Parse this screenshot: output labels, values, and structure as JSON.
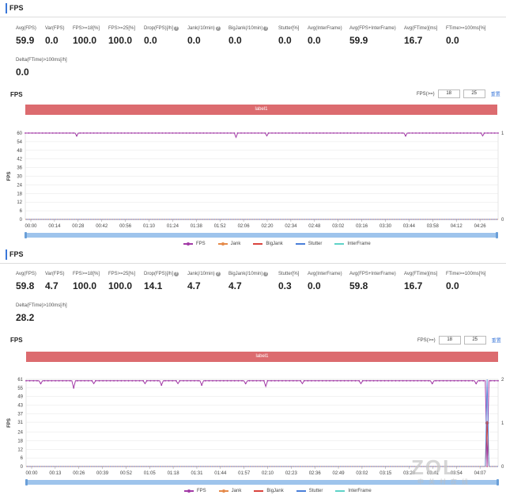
{
  "colors": {
    "fps": "#a23aa6",
    "jank": "#e58a4a",
    "bigjank": "#d9443e",
    "stutter": "#4a7fd9",
    "interframe": "#5fd3c8",
    "label_bar": "#dc6b6f",
    "accent": "#3a77d9"
  },
  "panels": [
    {
      "section_title": "FPS",
      "metrics": [
        {
          "label": "Avg(FPS)",
          "value": "59.9"
        },
        {
          "label": "Var(FPS)",
          "value": "0.0"
        },
        {
          "label": "FPS>=18[%]",
          "value": "100.0"
        },
        {
          "label": "FPS>=25[%]",
          "value": "100.0"
        },
        {
          "label": "Drop(FPS)[/h]",
          "value": "0.0",
          "help": true
        },
        {
          "label": "Jank(/10min)",
          "value": "0.0",
          "help": true
        },
        {
          "label": "BigJank(/10min)",
          "value": "0.0",
          "help": true
        },
        {
          "label": "Stutter[%]",
          "value": "0.0"
        },
        {
          "label": "Avg(InterFrame)",
          "value": "0.0"
        },
        {
          "label": "Avg(FPS+InterFrame)",
          "value": "59.9"
        },
        {
          "label": "Avg(FTime)[ms]",
          "value": "16.7"
        },
        {
          "label": "FTime>=100ms[%]",
          "value": "0.0"
        },
        {
          "label": "Delta(FTime)>100ms[/h]",
          "value": "0.0"
        }
      ],
      "chart_title": "FPS",
      "fps_label": "FPS(>=)",
      "fps_inputs": [
        "18",
        "25"
      ],
      "reset_label": "重置",
      "label_bar": "label1"
    },
    {
      "section_title": "FPS",
      "metrics": [
        {
          "label": "Avg(FPS)",
          "value": "59.8"
        },
        {
          "label": "Var(FPS)",
          "value": "4.7"
        },
        {
          "label": "FPS>=18[%]",
          "value": "100.0"
        },
        {
          "label": "FPS>=25[%]",
          "value": "100.0"
        },
        {
          "label": "Drop(FPS)[/h]",
          "value": "14.1",
          "help": true
        },
        {
          "label": "Jank(/10min)",
          "value": "4.7",
          "help": true
        },
        {
          "label": "BigJank(/10min)",
          "value": "4.7",
          "help": true
        },
        {
          "label": "Stutter[%]",
          "value": "0.3"
        },
        {
          "label": "Avg(InterFrame)",
          "value": "0.0"
        },
        {
          "label": "Avg(FPS+InterFrame)",
          "value": "59.8"
        },
        {
          "label": "Avg(FTime)[ms]",
          "value": "16.7"
        },
        {
          "label": "FTime>=100ms[%]",
          "value": "0.0"
        },
        {
          "label": "Delta(FTime)>100ms[/h]",
          "value": "28.2"
        }
      ],
      "chart_title": "FPS",
      "fps_label": "FPS(>=)",
      "fps_inputs": [
        "18",
        "25"
      ],
      "reset_label": "重置",
      "label_bar": "label1"
    }
  ],
  "chart_data": [
    {
      "type": "line",
      "ylabel": "FPS",
      "ylim": [
        0,
        60
      ],
      "yticks": [
        0,
        6,
        12,
        18,
        24,
        30,
        36,
        42,
        48,
        54,
        60
      ],
      "y2lim": [
        0,
        1
      ],
      "y2ticks": [
        0,
        1
      ],
      "x_ticks": [
        "00:00",
        "00:14",
        "00:28",
        "00:42",
        "00:56",
        "01:10",
        "01:24",
        "01:38",
        "01:52",
        "02:06",
        "02:20",
        "02:34",
        "02:48",
        "03:02",
        "03:16",
        "03:30",
        "03:44",
        "03:58",
        "04:12",
        "04:26"
      ],
      "x_range_seconds": [
        0,
        276
      ],
      "grid": true,
      "legend_position": "bottom",
      "series": [
        {
          "name": "FPS",
          "axis": "left",
          "baseline": 60,
          "dips": [
            [
              30,
              58
            ],
            [
              123,
              57
            ],
            [
              141,
              58
            ],
            [
              222,
              58
            ],
            [
              267,
              58
            ]
          ]
        },
        {
          "name": "Jank",
          "axis": "right",
          "values": []
        },
        {
          "name": "BigJank",
          "axis": "right",
          "values": []
        },
        {
          "name": "Stutter",
          "axis": "right",
          "values": []
        },
        {
          "name": "InterFrame",
          "axis": "left",
          "values": []
        }
      ]
    },
    {
      "type": "line",
      "ylabel": "FPS",
      "ylim": [
        0,
        61
      ],
      "yticks": [
        0,
        6,
        12,
        18,
        24,
        31,
        37,
        43,
        49,
        55,
        61
      ],
      "y2lim": [
        0,
        2
      ],
      "y2ticks": [
        0,
        1,
        2
      ],
      "x_ticks": [
        "00:00",
        "00:13",
        "00:26",
        "00:39",
        "00:52",
        "01:05",
        "01:18",
        "01:31",
        "01:44",
        "01:57",
        "02:10",
        "02:23",
        "02:36",
        "02:49",
        "03:02",
        "03:15",
        "03:28",
        "03:41",
        "03:54",
        "04:07"
      ],
      "x_range_seconds": [
        0,
        258
      ],
      "grid": true,
      "legend_position": "bottom",
      "series": [
        {
          "name": "FPS",
          "axis": "left",
          "baseline": 60,
          "dips": [
            [
              8,
              58
            ],
            [
              26,
              55
            ],
            [
              37,
              58
            ],
            [
              65,
              58
            ],
            [
              74,
              57
            ],
            [
              83,
              58
            ],
            [
              96,
              57
            ],
            [
              120,
              58
            ],
            [
              131,
              56
            ],
            [
              151,
              58
            ],
            [
              183,
              58
            ],
            [
              222,
              58
            ],
            [
              246,
              58
            ],
            [
              252,
              0
            ],
            [
              253,
              60
            ]
          ]
        },
        {
          "name": "Jank",
          "axis": "right",
          "values": [
            [
              252,
              1
            ]
          ]
        },
        {
          "name": "BigJank",
          "axis": "right",
          "values": [
            [
              252,
              1
            ]
          ]
        },
        {
          "name": "Stutter",
          "axis": "right",
          "values": [
            [
              251,
              0
            ],
            [
              252,
              2
            ],
            [
              253,
              0
            ]
          ]
        },
        {
          "name": "InterFrame",
          "axis": "left",
          "values": []
        }
      ]
    }
  ]
}
